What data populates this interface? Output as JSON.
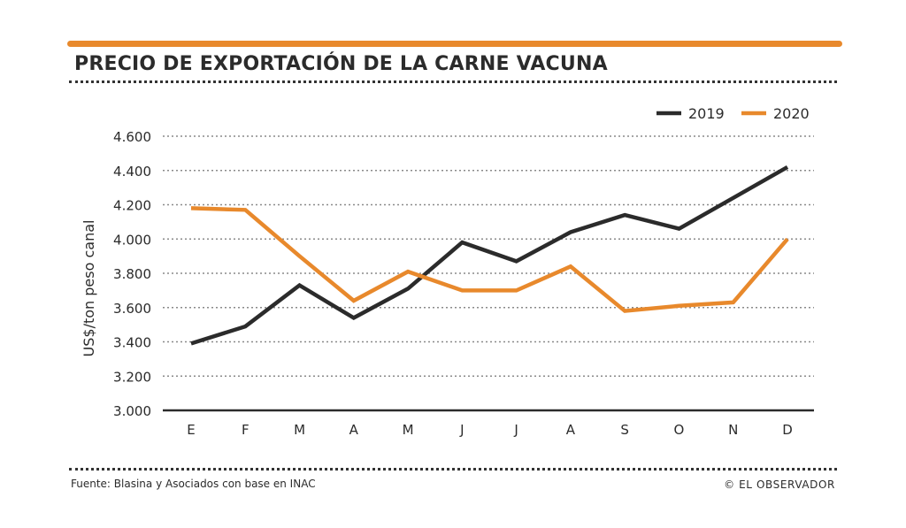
{
  "header": {
    "title": "PRECIO DE EXPORTACIÓN DE LA CARNE VACUNA"
  },
  "footer": {
    "source": "Fuente: Blasina y Asociados con base en INAC",
    "credit": "© EL OBSERVADOR"
  },
  "colors": {
    "accent": "#e8892c",
    "series_2019": "#2b2b2b",
    "series_2020": "#e8892c",
    "text": "#2b2b2b",
    "grid": "#8a8a8a"
  },
  "chart_data": {
    "type": "line",
    "title": "PRECIO DE EXPORTACIÓN DE LA CARNE VACUNA",
    "xlabel": "",
    "ylabel": "US$/ton peso canal",
    "categories": [
      "E",
      "F",
      "M",
      "A",
      "M",
      "J",
      "J",
      "A",
      "S",
      "O",
      "N",
      "D"
    ],
    "ylim": [
      3000,
      4600
    ],
    "yticks": [
      3000,
      3200,
      3400,
      3600,
      3800,
      4000,
      4200,
      4400,
      4600
    ],
    "ytick_labels": [
      "3.000",
      "3.200",
      "3.400",
      "3.600",
      "3.800",
      "4.000",
      "4.200",
      "4.400",
      "4.600"
    ],
    "grid": true,
    "legend_position": "top-right",
    "series": [
      {
        "name": "2019",
        "values": [
          3390,
          3490,
          3730,
          3540,
          3710,
          3980,
          3870,
          4040,
          4140,
          4060,
          4240,
          4420
        ]
      },
      {
        "name": "2020",
        "values": [
          4180,
          4170,
          3900,
          3640,
          3810,
          3700,
          3700,
          3840,
          3580,
          3610,
          3630,
          4000
        ]
      }
    ]
  }
}
